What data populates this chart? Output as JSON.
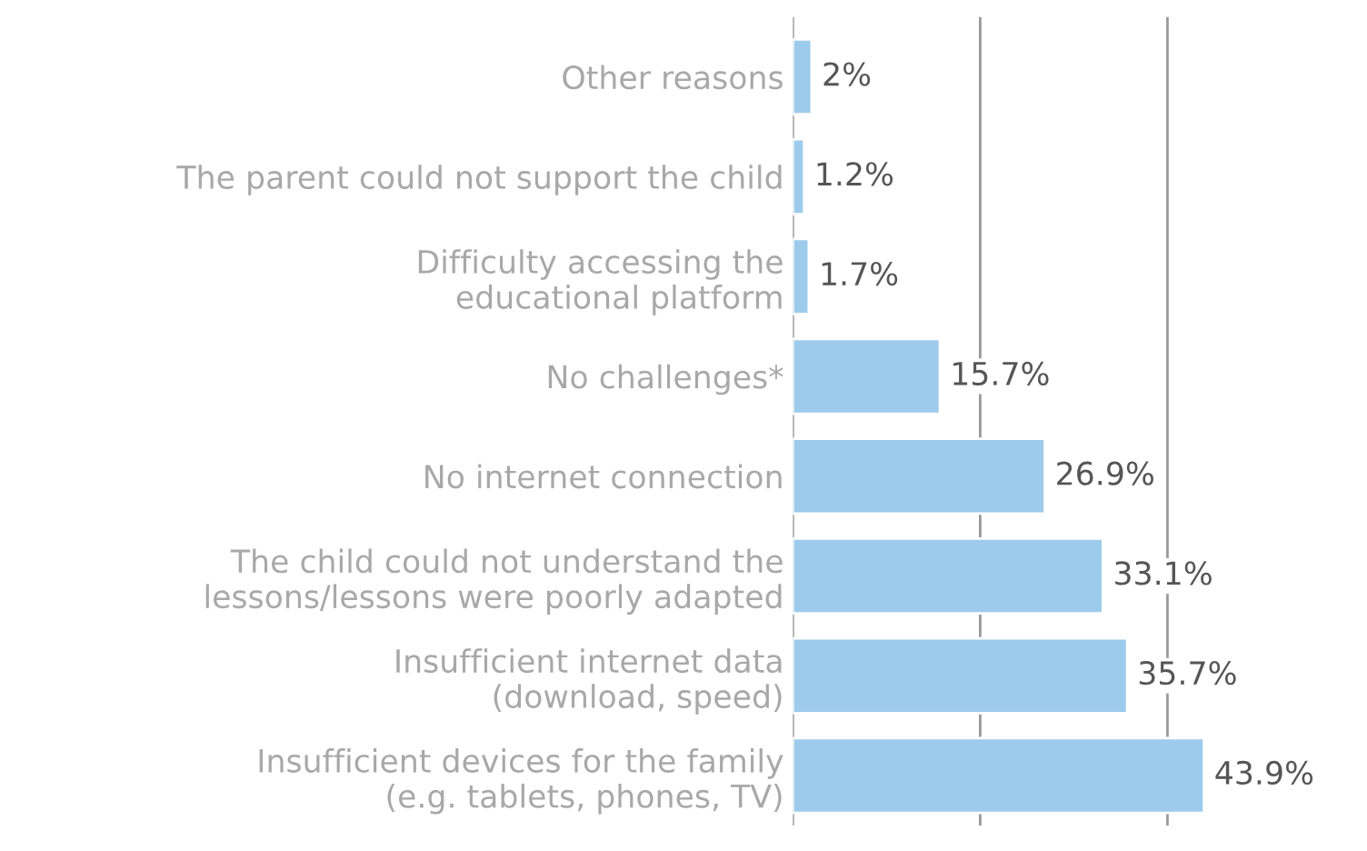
{
  "chart_data": {
    "type": "bar",
    "orientation": "horizontal",
    "categories": [
      "Other reasons",
      "The parent could not support the child",
      "Difficulty accessing the\neducational platform",
      "No challenges*",
      "No internet connection",
      "The child could not understand the\nlessons/lessons were poorly adapted",
      "Insufficient internet data\n(download, speed)",
      "Insufficient devices for the family\n(e.g. tablets, phones, TV)"
    ],
    "values": [
      2,
      1.2,
      1.7,
      15.7,
      26.9,
      33.1,
      35.7,
      43.9
    ],
    "value_labels": [
      "2%",
      "1.2%",
      "1.7%",
      "15.7%",
      "26.9%",
      "33.1%",
      "35.7%",
      "43.9%"
    ],
    "color": "#9dcbec",
    "ref_lines": [
      {
        "axis": "x",
        "value": 0,
        "color": "#999999"
      },
      {
        "axis": "x",
        "value": 20,
        "color": "#999999"
      },
      {
        "axis": "x",
        "value": 40,
        "color": "#999999"
      }
    ],
    "tick_labels": "y"
  }
}
